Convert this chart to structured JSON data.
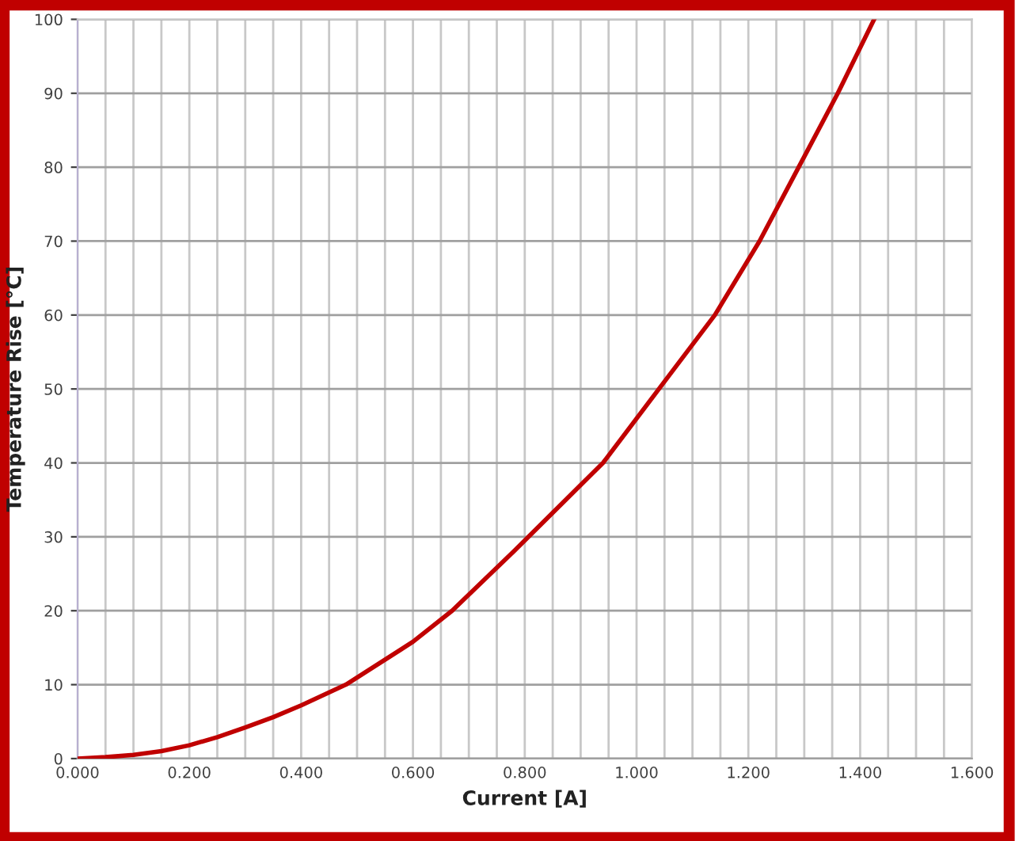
{
  "chart_data": {
    "type": "line",
    "xlabel": "Current [A]",
    "ylabel": "Temperature Rise [°C]",
    "x": [
      0,
      0.05,
      0.1,
      0.15,
      0.2,
      0.25,
      0.3,
      0.35,
      0.4,
      0.48,
      0.6,
      0.67,
      0.78,
      0.8,
      0.94,
      1.04,
      1.14,
      1.22,
      1.29,
      1.36,
      1.425
    ],
    "series": [
      {
        "color": "#c00000",
        "values": [
          0,
          0.2,
          0.5,
          1.0,
          1.8,
          2.9,
          4.2,
          5.6,
          7.2,
          10,
          15.8,
          20,
          28,
          29.5,
          40,
          50,
          60,
          70,
          80,
          90,
          100
        ]
      }
    ],
    "xlim": [
      0,
      1.6
    ],
    "ylim": [
      0,
      100
    ],
    "xticks": [
      {
        "value": 0,
        "label": "0.000"
      },
      {
        "value": 0.05,
        "label": null
      },
      {
        "value": 0.1,
        "label": null
      },
      {
        "value": 0.15,
        "label": null
      },
      {
        "value": 0.2,
        "label": "0.200"
      },
      {
        "value": 0.25,
        "label": null
      },
      {
        "value": 0.3,
        "label": null
      },
      {
        "value": 0.35,
        "label": null
      },
      {
        "value": 0.4,
        "label": "0.400"
      },
      {
        "value": 0.45,
        "label": null
      },
      {
        "value": 0.5,
        "label": null
      },
      {
        "value": 0.55,
        "label": null
      },
      {
        "value": 0.6,
        "label": "0.600"
      },
      {
        "value": 0.65,
        "label": null
      },
      {
        "value": 0.7,
        "label": null
      },
      {
        "value": 0.75,
        "label": null
      },
      {
        "value": 0.8,
        "label": "0.800"
      },
      {
        "value": 0.85,
        "label": null
      },
      {
        "value": 0.9,
        "label": null
      },
      {
        "value": 0.95,
        "label": null
      },
      {
        "value": 1.0,
        "label": "1.000"
      },
      {
        "value": 1.05,
        "label": null
      },
      {
        "value": 1.1,
        "label": null
      },
      {
        "value": 1.15,
        "label": null
      },
      {
        "value": 1.2,
        "label": "1.200"
      },
      {
        "value": 1.25,
        "label": null
      },
      {
        "value": 1.3,
        "label": null
      },
      {
        "value": 1.35,
        "label": null
      },
      {
        "value": 1.4,
        "label": "1.400"
      },
      {
        "value": 1.45,
        "label": null
      },
      {
        "value": 1.5,
        "label": null
      },
      {
        "value": 1.55,
        "label": null
      },
      {
        "value": 1.6,
        "label": "1.600"
      }
    ],
    "yticks": [
      0,
      10,
      20,
      30,
      40,
      50,
      60,
      70,
      80,
      90,
      100
    ],
    "grid": true,
    "legend": false,
    "marker": "none",
    "line_style": "solid"
  }
}
